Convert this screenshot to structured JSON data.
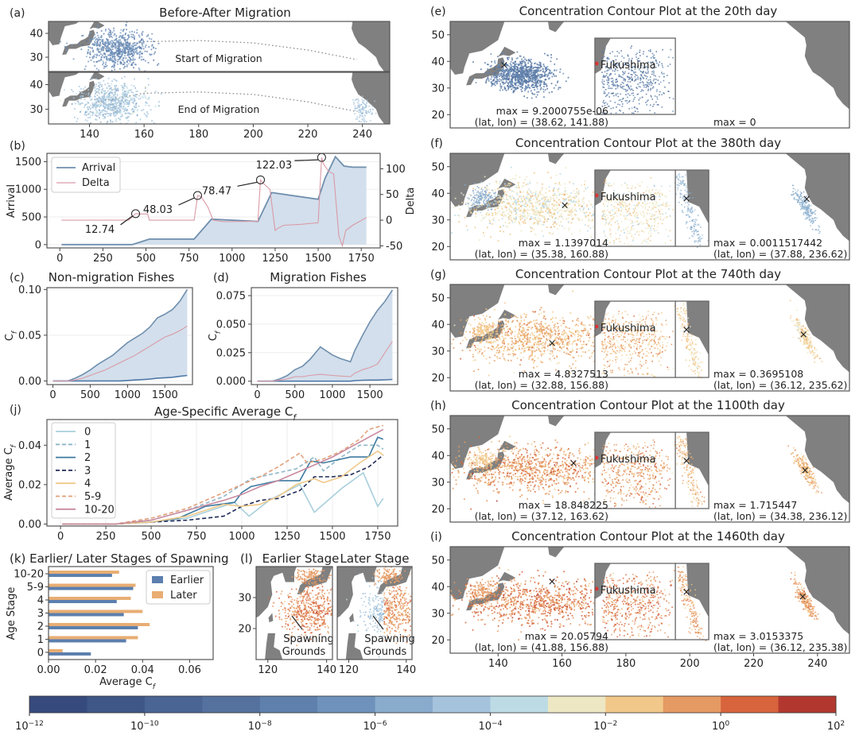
{
  "colors": {
    "land": "#808080",
    "arrival_line": "#6f8fad",
    "arrival_fill": "#d3dfec",
    "delta_line": "#d99aa6",
    "age_0": "#a8cfdc",
    "age_1": "#8fb6c8",
    "age_2": "#3e7aa0",
    "age_3": "#1f2a55",
    "age_4": "#efc98a",
    "age_5_9": "#e2a079",
    "age_10_20": "#c98aa0",
    "earlier": "#5b7fae",
    "later": "#e8ad73",
    "colormap": [
      "#364a7d",
      "#3f5787",
      "#4a6493",
      "#55719e",
      "#5f80ac",
      "#6e92bb",
      "#89abcc",
      "#a5c3dc",
      "#bcdbe5",
      "#ede7c4",
      "#f2c88a",
      "#e59a63",
      "#d7643c",
      "#b2382f"
    ]
  },
  "chart_data": [
    {
      "id": "a",
      "panel_label": "(a)",
      "type": "scatter",
      "title": "Before-After Migration",
      "subplots": [
        {
          "annotation": "Start of Migration",
          "yticks": [
            30,
            40
          ],
          "cloud": {
            "lon": 150,
            "lat": 34,
            "color_level": 0.35
          }
        },
        {
          "annotation": "End of Migration",
          "yticks": [
            30,
            40
          ],
          "cloud": {
            "lon": 148,
            "lat": 33,
            "color_level": 0.55
          },
          "cloud2": {
            "lon": 240,
            "lat": 30,
            "color_level": 0.55
          }
        }
      ],
      "xticks": [
        140,
        160,
        180,
        200,
        220,
        240
      ],
      "xlim": [
        125,
        250
      ],
      "ylim": [
        24,
        45
      ]
    },
    {
      "id": "b",
      "panel_label": "(b)",
      "type": "line",
      "xlabel": "",
      "ylabel": "Arrival",
      "y2label": "Delta",
      "xticks": [
        0,
        250,
        500,
        750,
        1000,
        1250,
        1500,
        1750
      ],
      "yticks": [
        0,
        500,
        1000,
        1500
      ],
      "y2ticks": [
        -50,
        0,
        50,
        100
      ],
      "xlim": [
        -75,
        1860
      ],
      "ylim": [
        -60,
        1650
      ],
      "y2lim": [
        -54,
        130
      ],
      "legend": [
        "Arrival",
        "Delta"
      ],
      "series": [
        {
          "name": "Arrival",
          "x": [
            10,
            420,
            520,
            780,
            880,
            1150,
            1230,
            1500,
            1540,
            1600,
            1650,
            1700,
            1780
          ],
          "values": [
            0,
            0,
            100,
            100,
            460,
            420,
            940,
            820,
            1200,
            1590,
            1420,
            1400,
            1400
          ]
        },
        {
          "name": "Delta",
          "x": [
            10,
            400,
            440,
            470,
            510,
            520,
            780,
            800,
            820,
            860,
            890,
            950,
            1150,
            1165,
            1180,
            1220,
            1250,
            1270,
            1300,
            1400,
            1500,
            1520,
            1530,
            1560,
            1590,
            1620,
            1640,
            1660,
            1700,
            1780
          ],
          "values": [
            0,
            0,
            12.74,
            12,
            12,
            0,
            0,
            48.03,
            46,
            25,
            0,
            -3,
            -2,
            78.47,
            72,
            60,
            -20,
            -15,
            -10,
            -8,
            -5,
            122.03,
            110,
            95,
            90,
            -30,
            -50,
            -20,
            -10,
            5
          ]
        }
      ],
      "annotations": [
        {
          "text": "12.74",
          "x": 440,
          "y": 12.74
        },
        {
          "text": "48.03",
          "x": 800,
          "y": 48.03
        },
        {
          "text": "78.47",
          "x": 1165,
          "y": 78.47
        },
        {
          "text": "122.03",
          "x": 1520,
          "y": 122.03
        }
      ]
    },
    {
      "id": "c",
      "panel_label": "(c)",
      "type": "area",
      "title": "Non-migration Fishes",
      "ylabel": "C_f",
      "xticks": [
        0,
        500,
        1000,
        1500
      ],
      "yticks": [
        0.0,
        0.05,
        0.1
      ],
      "ytick_labels": [
        "0.00",
        "0.05",
        "0.10"
      ],
      "xlim": [
        -80,
        1870
      ],
      "ylim": [
        -0.004,
        0.102
      ],
      "x": [
        0,
        200,
        300,
        400,
        500,
        600,
        700,
        800,
        900,
        1000,
        1100,
        1200,
        1300,
        1400,
        1500,
        1600,
        1700,
        1800
      ],
      "upper": [
        0,
        0,
        0.003,
        0.007,
        0.012,
        0.018,
        0.023,
        0.028,
        0.035,
        0.042,
        0.047,
        0.052,
        0.059,
        0.069,
        0.073,
        0.078,
        0.087,
        0.1
      ],
      "mean": [
        0,
        0,
        0.001,
        0.003,
        0.006,
        0.009,
        0.012,
        0.016,
        0.02,
        0.024,
        0.028,
        0.033,
        0.038,
        0.043,
        0.048,
        0.051,
        0.055,
        0.06
      ],
      "lower": [
        0,
        0,
        0,
        0,
        0,
        0,
        0,
        0,
        0,
        0.0005,
        0.001,
        0.0015,
        0.002,
        0.003,
        0.0035,
        0.004,
        0.005,
        0.006
      ]
    },
    {
      "id": "d",
      "panel_label": "(d)",
      "type": "area",
      "title": "Migration Fishes",
      "ylabel": "C_f",
      "xticks": [
        0,
        500,
        1000,
        1500
      ],
      "yticks": [
        0.0,
        0.025,
        0.05,
        0.075
      ],
      "ytick_labels": [
        "0.000",
        "0.025",
        "0.050",
        "0.075"
      ],
      "xlim": [
        -80,
        1870
      ],
      "ylim": [
        -0.003,
        0.082
      ],
      "x": [
        0,
        200,
        300,
        400,
        500,
        600,
        700,
        840,
        1000,
        1100,
        1240,
        1300,
        1400,
        1500,
        1600,
        1700,
        1800
      ],
      "upper": [
        0,
        0,
        0.002,
        0.005,
        0.01,
        0.013,
        0.019,
        0.03,
        0.023,
        0.02,
        0.017,
        0.027,
        0.04,
        0.052,
        0.062,
        0.07,
        0.08
      ],
      "mean": [
        0,
        0,
        0.001,
        0.002,
        0.004,
        0.004,
        0.005,
        0.006,
        0.005,
        0.0045,
        0.004,
        0.007,
        0.01,
        0.012,
        0.015,
        0.025,
        0.035
      ],
      "lower": [
        0,
        0,
        0,
        0,
        0,
        0,
        0,
        0,
        0,
        0,
        0,
        0.0005,
        0.0008,
        0.001,
        0.001,
        0.0012,
        0.0015
      ]
    },
    {
      "id": "j",
      "panel_label": "(j)",
      "type": "line",
      "title": "Age-Specific Average C",
      "title_sub": "f",
      "ylabel": "Average C",
      "ylabel_sub": "f",
      "xticks": [
        0,
        250,
        500,
        750,
        1000,
        1250,
        1500,
        1750
      ],
      "yticks": [
        0.0,
        0.02,
        0.04
      ],
      "ytick_labels": [
        "0.00",
        "0.02",
        "0.04"
      ],
      "xlim": [
        -75,
        1860
      ],
      "ylim": [
        -0.001,
        0.053
      ],
      "legend": [
        "0",
        "1",
        "2",
        "3",
        "4",
        "5-9",
        "10-20"
      ],
      "series": [
        {
          "name": "0",
          "dashed": false,
          "color_key": "age_0",
          "x": [
            10,
            300,
            500,
            700,
            960,
            1040,
            1150,
            1320,
            1400,
            1550,
            1670,
            1750,
            1780
          ],
          "values": [
            0,
            0,
            0.001,
            0.003,
            0.011,
            0.004,
            0.012,
            0.02,
            0.006,
            0.018,
            0.026,
            0.009,
            0.013
          ]
        },
        {
          "name": "1",
          "dashed": true,
          "color_key": "age_1",
          "x": [
            10,
            300,
            500,
            700,
            900,
            1000,
            1050,
            1150,
            1300,
            1400,
            1450,
            1550,
            1650,
            1750,
            1780
          ],
          "values": [
            0,
            0,
            0.002,
            0.007,
            0.014,
            0.02,
            0.023,
            0.025,
            0.028,
            0.034,
            0.027,
            0.034,
            0.04,
            0.04,
            0.038
          ]
        },
        {
          "name": "2",
          "dashed": false,
          "color_key": "age_2",
          "x": [
            10,
            300,
            500,
            650,
            800,
            960,
            1000,
            1050,
            1200,
            1320,
            1380,
            1450,
            1550,
            1600,
            1700,
            1750,
            1780
          ],
          "values": [
            0,
            0,
            0.001,
            0.003,
            0.009,
            0.011,
            0.016,
            0.019,
            0.022,
            0.022,
            0.032,
            0.031,
            0.033,
            0.034,
            0.034,
            0.044,
            0.043
          ]
        },
        {
          "name": "3",
          "dashed": true,
          "color_key": "age_3",
          "x": [
            10,
            300,
            500,
            700,
            900,
            1000,
            1100,
            1200,
            1320,
            1400,
            1500,
            1600,
            1700,
            1780
          ],
          "values": [
            0,
            0,
            0.001,
            0.002,
            0.004,
            0.009,
            0.012,
            0.013,
            0.017,
            0.024,
            0.024,
            0.025,
            0.029,
            0.035
          ]
        },
        {
          "name": "4",
          "dashed": false,
          "color_key": "age_4",
          "x": [
            10,
            300,
            500,
            700,
            900,
            1000,
            1100,
            1200,
            1300,
            1400,
            1450,
            1550,
            1650,
            1750,
            1780
          ],
          "values": [
            0,
            0,
            0.001,
            0.004,
            0.01,
            0.009,
            0.01,
            0.014,
            0.02,
            0.023,
            0.021,
            0.024,
            0.031,
            0.037,
            0.035
          ]
        },
        {
          "name": "5-9",
          "dashed": true,
          "color_key": "age_5_9",
          "x": [
            10,
            300,
            500,
            700,
            900,
            1000,
            1100,
            1200,
            1320,
            1360,
            1450,
            1550,
            1650,
            1700,
            1780
          ],
          "values": [
            0,
            0,
            0.003,
            0.008,
            0.016,
            0.02,
            0.024,
            0.029,
            0.036,
            0.031,
            0.033,
            0.037,
            0.043,
            0.048,
            0.05
          ]
        },
        {
          "name": "10-20",
          "dashed": false,
          "color_key": "age_10_20",
          "x": [
            10,
            300,
            500,
            700,
            900,
            1000,
            1100,
            1200,
            1300,
            1400,
            1500,
            1600,
            1700,
            1780
          ],
          "values": [
            0,
            0,
            0.002,
            0.007,
            0.012,
            0.015,
            0.019,
            0.022,
            0.026,
            0.03,
            0.034,
            0.039,
            0.044,
            0.048
          ]
        }
      ]
    },
    {
      "id": "k",
      "panel_label": "(k)",
      "type": "bar",
      "orientation": "horizontal",
      "title": "Earlier/ Later Stages of Spawning",
      "xlabel": "Average C",
      "xlabel_sub": "f",
      "ylabel": "Age Stage",
      "categories": [
        "0",
        "1",
        "2",
        "3",
        "4",
        "5-9",
        "10-20"
      ],
      "xticks": [
        0.0,
        0.02,
        0.04,
        0.06
      ],
      "xtick_labels": [
        "0.00",
        "0.02",
        "0.04",
        "0.06"
      ],
      "xlim": [
        0,
        0.07
      ],
      "legend": [
        "Earlier",
        "Later"
      ],
      "series": [
        {
          "name": "Earlier",
          "values": [
            0.018,
            0.033,
            0.038,
            0.032,
            0.029,
            0.036,
            0.027
          ]
        },
        {
          "name": "Later",
          "values": [
            0.006,
            0.038,
            0.043,
            0.04,
            0.035,
            0.037,
            0.03
          ]
        }
      ]
    },
    {
      "id": "l",
      "panel_label": "(l)",
      "type": "scatter",
      "subplots": [
        {
          "title": "Earlier Stage",
          "annotation": "Spawning Grounds",
          "xticks": [
            120,
            140
          ],
          "color_level": 0.88
        },
        {
          "title": "Later Stage",
          "annotation": "Spawning Grounds",
          "xticks": [
            120,
            140
          ],
          "color_level": 0.6
        }
      ],
      "yticks": [
        20,
        30
      ]
    },
    {
      "id": "maps",
      "type": "scatter",
      "xticks": [
        140,
        160,
        180,
        200,
        220,
        240
      ],
      "yticks": [
        20,
        30,
        40,
        50
      ],
      "xlim": [
        125,
        250
      ],
      "ylim": [
        15,
        55
      ],
      "panels": [
        {
          "panel_label": "(e)",
          "title": "Concentration Contour Plot at the 20th day",
          "color_level": 0.3,
          "left_max": "max = 9.2000755e-06",
          "left_latlon": "(lat, lon) = (38.62, 141.88)",
          "right_max": "max = 0",
          "right_latlon": "",
          "has_right_inset": false,
          "east_cloud": false,
          "inset_label": "Fukushima"
        },
        {
          "panel_label": "(f)",
          "title": "Concentration Contour Plot at the 380th day",
          "color_level": 0.7,
          "left_max": "max = 1.1397014",
          "left_latlon": "(lat, lon) = (35.38, 160.88)",
          "right_max": "max = 0.0011517442",
          "right_latlon": "(lat, lon) = (37.88, 236.62)",
          "has_right_inset": true,
          "east_cloud": true,
          "east_level": 0.5,
          "inset_label": "Fukushima"
        },
        {
          "panel_label": "(g)",
          "title": "Concentration Contour Plot at the 740th day",
          "color_level": 0.8,
          "left_max": "max = 4.8327513",
          "left_latlon": "(lat, lon) = (32.88, 156.88)",
          "right_max": "max = 0.3695108",
          "right_latlon": "(lat, lon) = (36.12, 235.62)",
          "has_right_inset": true,
          "east_cloud": true,
          "east_level": 0.74,
          "inset_label": "Fukushima"
        },
        {
          "panel_label": "(h)",
          "title": "Concentration Contour Plot at the 1100th day",
          "color_level": 0.85,
          "left_max": "max = 18.848225",
          "left_latlon": "(lat, lon) = (37.12, 163.62)",
          "right_max": "max = 1.715447",
          "right_latlon": "(lat, lon) = (34.38, 236.12)",
          "has_right_inset": true,
          "east_cloud": true,
          "east_level": 0.8,
          "inset_label": "Fukushima"
        },
        {
          "panel_label": "(i)",
          "title": "Concentration Contour Plot at the 1460th day",
          "color_level": 0.88,
          "left_max": "max = 20.05794",
          "left_latlon": "(lat, lon) = (41.88, 156.88)",
          "right_max": "max = 3.0153375",
          "right_latlon": "(lat, lon) = (36.12, 235.38)",
          "has_right_inset": true,
          "east_cloud": true,
          "east_level": 0.84,
          "inset_label": "Fukushima"
        }
      ]
    },
    {
      "id": "colorbar",
      "type": "heatmap",
      "scale": "log",
      "range_exponents": [
        -12,
        2
      ],
      "tick_exponents": [
        -12,
        -10,
        -8,
        -6,
        -4,
        -2,
        0,
        2
      ],
      "tick_base": "10"
    }
  ]
}
